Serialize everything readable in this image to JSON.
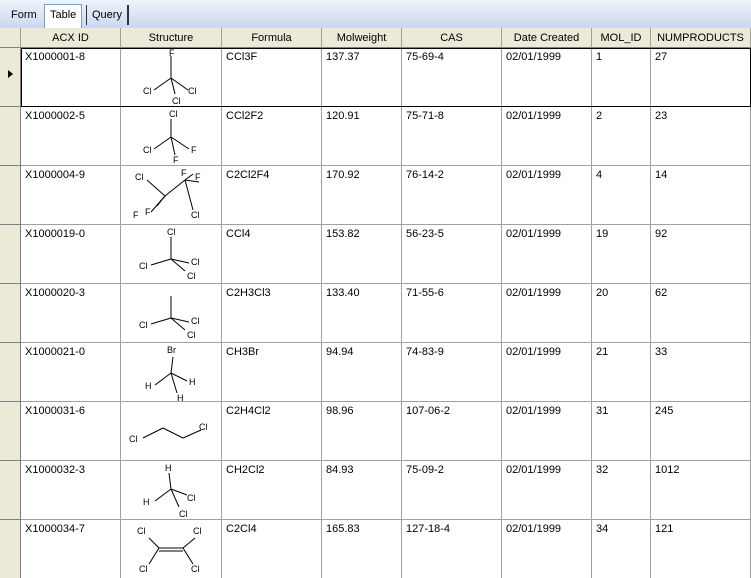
{
  "tabs": [
    {
      "label": "Form",
      "active": false
    },
    {
      "label": "Table",
      "active": true
    },
    {
      "label": "Query",
      "active": false
    }
  ],
  "columns": [
    "ACX ID",
    "Structure",
    "Formula",
    "Molweight",
    "CAS",
    "Date Created",
    "MOL_ID",
    "NUMPRODUCTS"
  ],
  "rows": [
    {
      "acx_id": "X1000001-8",
      "formula": "CCl3F",
      "molweight": "137.37",
      "cas": "75-69-4",
      "date": "02/01/1999",
      "mol_id": "1",
      "numproducts": "27",
      "structure": {
        "name": "trichlorofluoromethane",
        "atoms": [
          "F",
          "Cl",
          "Cl",
          "Cl"
        ]
      }
    },
    {
      "acx_id": "X1000002-5",
      "formula": "CCl2F2",
      "molweight": "120.91",
      "cas": "75-71-8",
      "date": "02/01/1999",
      "mol_id": "2",
      "numproducts": "23",
      "structure": {
        "name": "dichlorodifluoromethane",
        "atoms": [
          "Cl",
          "Cl",
          "F",
          "F"
        ]
      }
    },
    {
      "acx_id": "X1000004-9",
      "formula": "C2Cl2F4",
      "molweight": "170.92",
      "cas": "76-14-2",
      "date": "02/01/1999",
      "mol_id": "4",
      "numproducts": "14",
      "structure": {
        "name": "dichlorotetrafluoroethane",
        "atoms": [
          "Cl",
          "F",
          "F",
          "F",
          "F",
          "Cl"
        ]
      }
    },
    {
      "acx_id": "X1000019-0",
      "formula": "CCl4",
      "molweight": "153.82",
      "cas": "56-23-5",
      "date": "02/01/1999",
      "mol_id": "19",
      "numproducts": "92",
      "structure": {
        "name": "carbon-tetrachloride",
        "atoms": [
          "Cl",
          "Cl",
          "Cl",
          "Cl"
        ]
      }
    },
    {
      "acx_id": "X1000020-3",
      "formula": "C2H3Cl3",
      "molweight": "133.40",
      "cas": "71-55-6",
      "date": "02/01/1999",
      "mol_id": "20",
      "numproducts": "62",
      "structure": {
        "name": "trichloroethane",
        "atoms": [
          "Cl",
          "Cl",
          "Cl"
        ]
      }
    },
    {
      "acx_id": "X1000021-0",
      "formula": "CH3Br",
      "molweight": "94.94",
      "cas": "74-83-9",
      "date": "02/01/1999",
      "mol_id": "21",
      "numproducts": "33",
      "structure": {
        "name": "bromomethane",
        "atoms": [
          "Br",
          "H",
          "H",
          "H"
        ]
      }
    },
    {
      "acx_id": "X1000031-6",
      "formula": "C2H4Cl2",
      "molweight": "98.96",
      "cas": "107-06-2",
      "date": "02/01/1999",
      "mol_id": "31",
      "numproducts": "245",
      "structure": {
        "name": "dichloroethane",
        "atoms": [
          "Cl",
          "Cl"
        ]
      }
    },
    {
      "acx_id": "X1000032-3",
      "formula": "CH2Cl2",
      "molweight": "84.93",
      "cas": "75-09-2",
      "date": "02/01/1999",
      "mol_id": "32",
      "numproducts": "1012",
      "structure": {
        "name": "dichloromethane",
        "atoms": [
          "H",
          "H",
          "Cl",
          "Cl"
        ]
      }
    },
    {
      "acx_id": "X1000034-7",
      "formula": "C2Cl4",
      "molweight": "165.83",
      "cas": "127-18-4",
      "date": "02/01/1999",
      "mol_id": "34",
      "numproducts": "121",
      "structure": {
        "name": "tetrachloroethylene",
        "atoms": [
          "Cl",
          "Cl",
          "Cl",
          "Cl"
        ]
      }
    }
  ],
  "colors": {
    "tabbar_top": "#f0f4fb",
    "tabbar_bottom": "#c9d8f0",
    "header": "#ece9d8",
    "grid_line": "#a0a0a0"
  }
}
